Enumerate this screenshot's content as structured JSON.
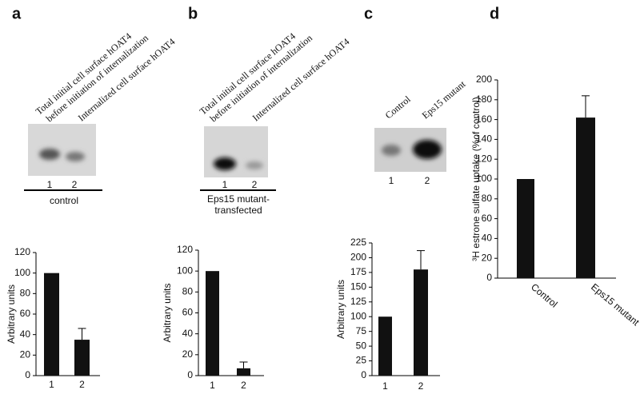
{
  "chart_data": [
    {
      "type": "bar",
      "panel": "a",
      "ylabel": "Arbitrary units",
      "categories": [
        "1",
        "2"
      ],
      "values": [
        100,
        35
      ],
      "errors": [
        null,
        11
      ],
      "color": "#111111",
      "ylim": [
        0,
        120
      ],
      "yticks": [
        0,
        20,
        40,
        60,
        80,
        100,
        120
      ],
      "blot": {
        "labels": [
          [
            "Total initial cell surface hOAT4",
            "before initiation of internalization"
          ],
          [
            "Internalized cell surface hOAT4"
          ]
        ],
        "lanes": [
          "1",
          "2"
        ],
        "condition": [
          "control"
        ]
      }
    },
    {
      "type": "bar",
      "panel": "b",
      "ylabel": "Arbitrary units",
      "categories": [
        "1",
        "2"
      ],
      "values": [
        100,
        7
      ],
      "errors": [
        null,
        6
      ],
      "color": "#111111",
      "ylim": [
        0,
        120
      ],
      "yticks": [
        0,
        20,
        40,
        60,
        80,
        100,
        120
      ],
      "blot": {
        "labels": [
          [
            "Total initial cell surface hOAT4",
            "before initiation of internalization"
          ],
          [
            "Internalized cell surface hOAT4"
          ]
        ],
        "lanes": [
          "1",
          "2"
        ],
        "condition": [
          "Eps15 mutant-",
          "transfected"
        ]
      }
    },
    {
      "type": "bar",
      "panel": "c",
      "ylabel": "Arbitrary units",
      "categories": [
        "1",
        "2"
      ],
      "values": [
        100,
        180
      ],
      "errors": [
        null,
        32
      ],
      "color": "#111111",
      "ylim": [
        0,
        225
      ],
      "yticks": [
        0,
        25,
        50,
        75,
        100,
        125,
        150,
        175,
        200,
        225
      ],
      "blot": {
        "labels": [
          [
            "Control"
          ],
          [
            "Eps15 mutant"
          ]
        ],
        "lanes": [
          "1",
          "2"
        ]
      }
    },
    {
      "type": "bar",
      "panel": "d",
      "ylabel": "³H estrone sulfate uptake (%of control)",
      "categories": [
        "Control",
        "Eps15 mutant"
      ],
      "values": [
        100,
        162
      ],
      "errors": [
        null,
        22
      ],
      "color": "#111111",
      "ylim": [
        0,
        200
      ],
      "yticks": [
        0,
        20,
        40,
        60,
        80,
        100,
        120,
        140,
        160,
        180,
        200
      ]
    }
  ]
}
